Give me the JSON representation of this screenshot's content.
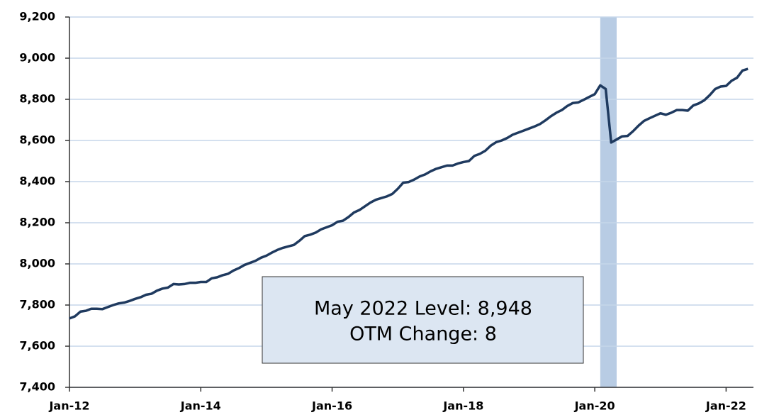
{
  "chart_data": {
    "type": "line",
    "categories": [
      "Jan-12",
      null,
      null,
      null,
      null,
      null,
      null,
      null,
      null,
      null,
      null,
      null,
      null,
      null,
      null,
      null,
      null,
      null,
      null,
      null,
      null,
      null,
      null,
      null,
      "Jan-14",
      null,
      null,
      null,
      null,
      null,
      null,
      null,
      null,
      null,
      null,
      null,
      null,
      null,
      null,
      null,
      null,
      null,
      null,
      null,
      null,
      null,
      null,
      null,
      "Jan-16",
      null,
      null,
      null,
      null,
      null,
      null,
      null,
      null,
      null,
      null,
      null,
      null,
      null,
      null,
      null,
      null,
      null,
      null,
      null,
      null,
      null,
      null,
      null,
      "Jan-18",
      null,
      null,
      null,
      null,
      null,
      null,
      null,
      null,
      null,
      null,
      null,
      null,
      null,
      null,
      null,
      null,
      null,
      null,
      null,
      null,
      null,
      null,
      null,
      "Jan-20",
      null,
      null,
      null,
      null,
      null,
      null,
      null,
      null,
      null,
      null,
      null,
      null,
      null,
      null,
      null,
      null,
      null,
      null,
      null,
      null,
      null,
      null,
      null,
      "Jan-22",
      null,
      null,
      null,
      null
    ],
    "values": [
      7735,
      7745,
      7768,
      7772,
      7782,
      7782,
      7780,
      7790,
      7800,
      7808,
      7812,
      7820,
      7830,
      7838,
      7850,
      7855,
      7870,
      7880,
      7885,
      7902,
      7900,
      7902,
      7908,
      7908,
      7912,
      7912,
      7930,
      7935,
      7945,
      7952,
      7968,
      7980,
      7995,
      8005,
      8015,
      8030,
      8040,
      8055,
      8068,
      8078,
      8085,
      8092,
      8112,
      8135,
      8142,
      8152,
      8168,
      8178,
      8188,
      8205,
      8210,
      8228,
      8250,
      8262,
      8280,
      8298,
      8312,
      8320,
      8328,
      8340,
      8365,
      8395,
      8398,
      8410,
      8425,
      8435,
      8450,
      8462,
      8470,
      8478,
      8478,
      8488,
      8495,
      8500,
      8525,
      8535,
      8550,
      8575,
      8592,
      8600,
      8612,
      8628,
      8638,
      8648,
      8658,
      8668,
      8680,
      8698,
      8718,
      8735,
      8748,
      8768,
      8782,
      8785,
      8798,
      8812,
      8825,
      8868,
      8850,
      8590,
      8605,
      8620,
      8622,
      8645,
      8672,
      8695,
      8708,
      8720,
      8732,
      8725,
      8735,
      8748,
      8748,
      8745,
      8770,
      8780,
      8795,
      8820,
      8850,
      8862,
      8865,
      8890,
      8905,
      8940,
      8948
    ],
    "color": "#1f3a5f",
    "highlight": {
      "from": 97,
      "to": 100,
      "color": "#b8cce4"
    },
    "annotation": [
      "May 2022 Level: 8,948",
      "OTM Change: 8"
    ],
    "ylim": [
      7400,
      9200
    ],
    "yticks": [
      {
        "value": 7400,
        "label": "7,400"
      },
      {
        "value": 7600,
        "label": "7,600"
      },
      {
        "value": 7800,
        "label": "7,800"
      },
      {
        "value": 8000,
        "label": "8,000"
      },
      {
        "value": 8200,
        "label": "8,200"
      },
      {
        "value": 8400,
        "label": "8,400"
      },
      {
        "value": 8600,
        "label": "8,600"
      },
      {
        "value": 8800,
        "label": "8,800"
      },
      {
        "value": 9000,
        "label": "9,000"
      },
      {
        "value": 9200,
        "label": "9,200"
      }
    ],
    "grid": true
  }
}
